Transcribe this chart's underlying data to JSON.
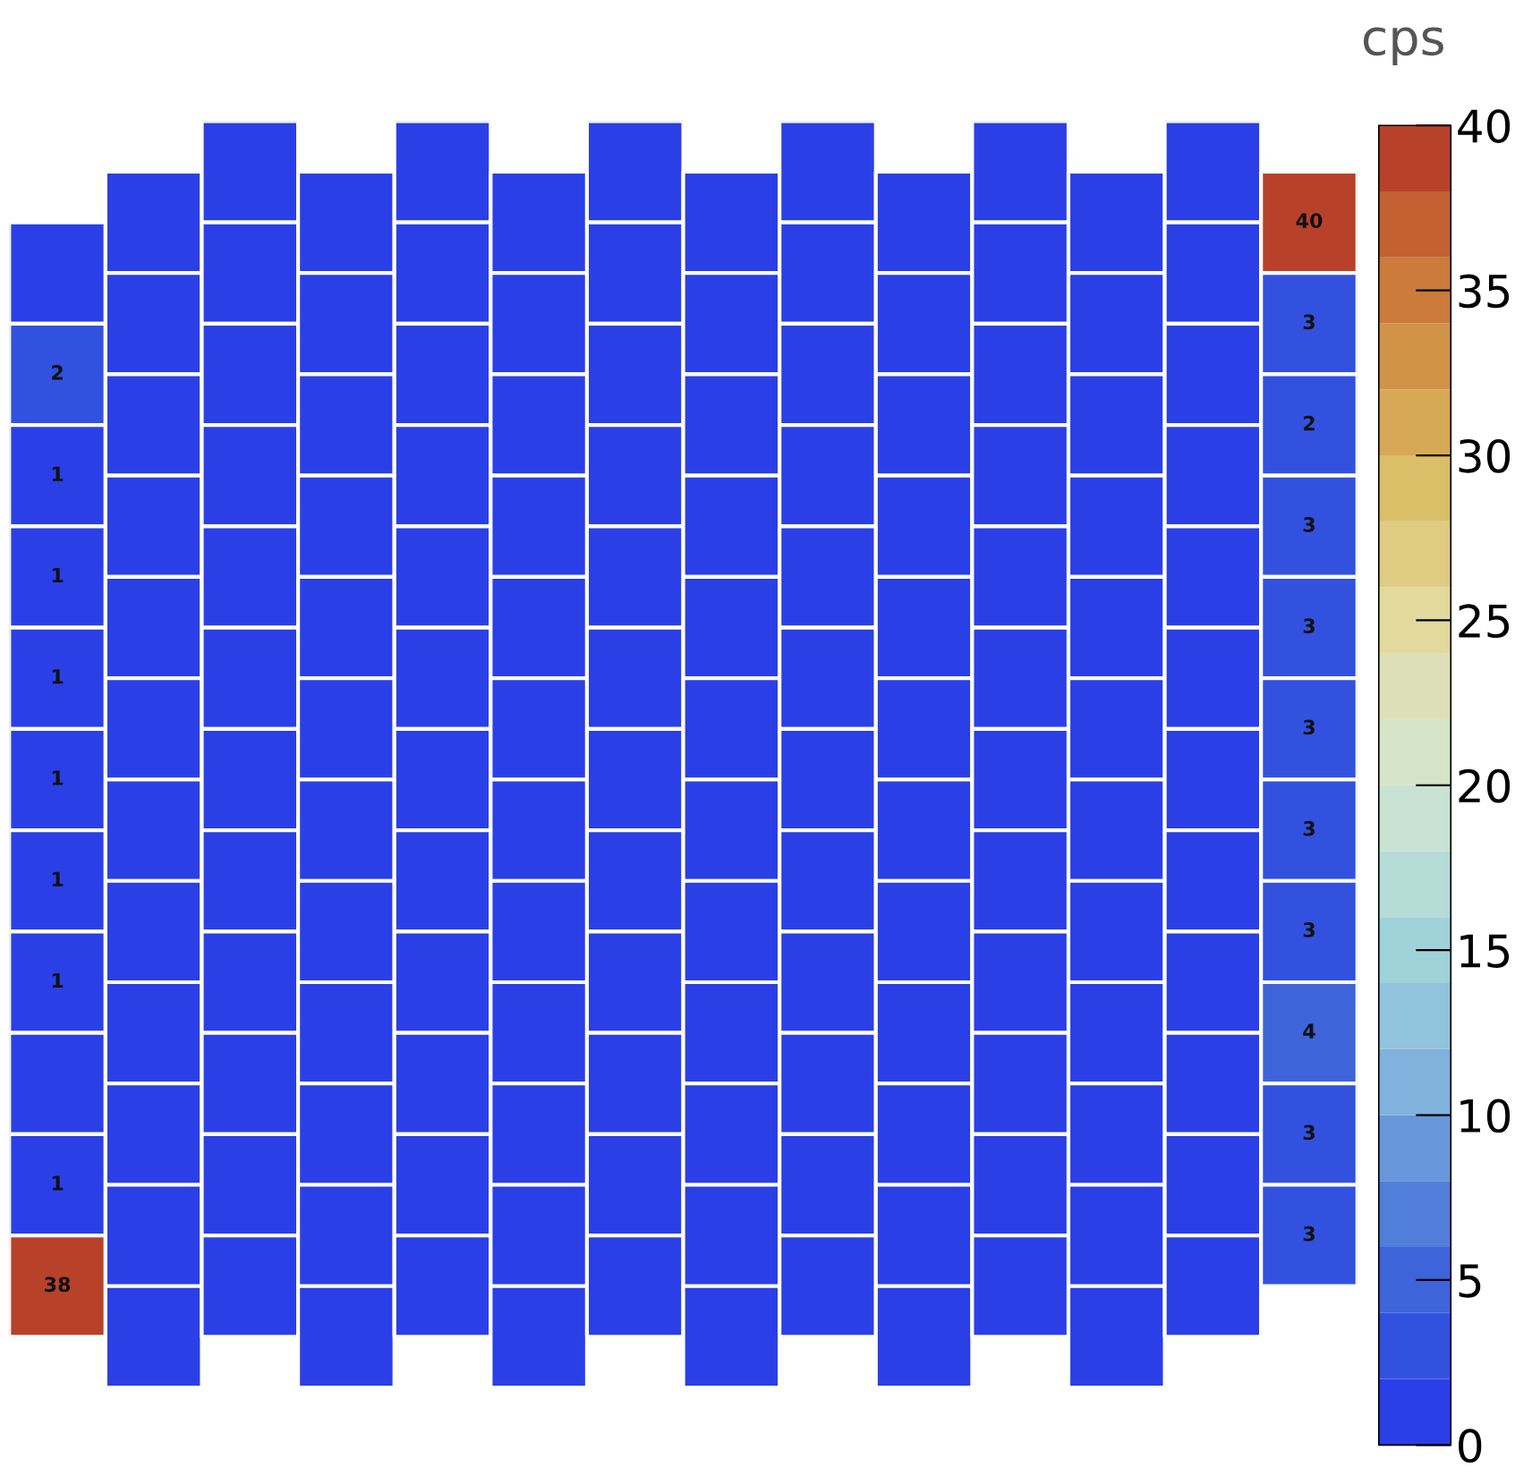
{
  "chart_data": {
    "type": "heatmap",
    "clabel": "cps",
    "categories": [
      null,
      null,
      null,
      null,
      null,
      null,
      null,
      null,
      null,
      null,
      null,
      null,
      null,
      null
    ],
    "y_categories": [
      null,
      null,
      null,
      null,
      null,
      null,
      null,
      null,
      null,
      null,
      null,
      null
    ],
    "cells": [
      [
        null,
        0,
        0,
        0,
        0,
        0,
        0,
        0,
        0,
        0,
        0,
        0,
        0,
        40
      ],
      [
        0,
        0,
        0,
        0,
        0,
        0,
        0,
        0,
        0,
        0,
        0,
        0,
        0,
        3
      ],
      [
        2,
        0,
        0,
        0,
        0,
        0,
        0,
        0,
        0,
        0,
        0,
        0,
        0,
        2
      ],
      [
        1,
        0,
        0,
        0,
        0,
        0,
        0,
        0,
        0,
        0,
        0,
        0,
        0,
        3
      ],
      [
        1,
        0,
        0,
        0,
        0,
        0,
        0,
        0,
        0,
        0,
        0,
        0,
        0,
        3
      ],
      [
        1,
        0,
        0,
        0,
        0,
        0,
        0,
        0,
        0,
        0,
        0,
        0,
        0,
        3
      ],
      [
        1,
        0,
        0,
        0,
        0,
        0,
        0,
        0,
        0,
        0,
        0,
        0,
        0,
        3
      ],
      [
        1,
        0,
        0,
        0,
        0,
        0,
        0,
        0,
        0,
        0,
        0,
        0,
        0,
        3
      ],
      [
        1,
        0,
        0,
        0,
        0,
        0,
        0,
        0,
        0,
        0,
        0,
        0,
        0,
        4
      ],
      [
        0,
        0,
        0,
        0,
        0,
        0,
        0,
        0,
        0,
        0,
        0,
        0,
        0,
        3
      ],
      [
        1,
        0,
        0,
        0,
        0,
        0,
        0,
        0,
        0,
        0,
        0,
        0,
        0,
        3
      ],
      [
        38,
        0,
        0,
        0,
        0,
        0,
        0,
        0,
        0,
        0,
        0,
        0,
        0,
        null
      ]
    ],
    "cell_labels": [
      [
        null,
        null,
        null,
        null,
        null,
        null,
        null,
        null,
        null,
        null,
        null,
        null,
        null,
        "40"
      ],
      [
        null,
        null,
        null,
        null,
        null,
        null,
        null,
        null,
        null,
        null,
        null,
        null,
        null,
        "3"
      ],
      [
        "2",
        null,
        null,
        null,
        null,
        null,
        null,
        null,
        null,
        null,
        null,
        null,
        null,
        "2"
      ],
      [
        "1",
        null,
        null,
        null,
        null,
        null,
        null,
        null,
        null,
        null,
        null,
        null,
        null,
        "3"
      ],
      [
        "1",
        null,
        null,
        null,
        null,
        null,
        null,
        null,
        null,
        null,
        null,
        null,
        null,
        "3"
      ],
      [
        "1",
        null,
        null,
        null,
        null,
        null,
        null,
        null,
        null,
        null,
        null,
        null,
        null,
        "3"
      ],
      [
        "1",
        null,
        null,
        null,
        null,
        null,
        null,
        null,
        null,
        null,
        null,
        null,
        null,
        "3"
      ],
      [
        "1",
        null,
        null,
        null,
        null,
        null,
        null,
        null,
        null,
        null,
        null,
        null,
        null,
        "3"
      ],
      [
        "1",
        null,
        null,
        null,
        null,
        null,
        null,
        null,
        null,
        null,
        null,
        null,
        null,
        "4"
      ],
      [
        null,
        null,
        null,
        null,
        null,
        null,
        null,
        null,
        null,
        null,
        null,
        null,
        null,
        "3"
      ],
      [
        "1",
        null,
        null,
        null,
        null,
        null,
        null,
        null,
        null,
        null,
        null,
        null,
        null,
        "3"
      ],
      [
        "38",
        null,
        null,
        null,
        null,
        null,
        null,
        null,
        null,
        null,
        null,
        null,
        null,
        null
      ]
    ],
    "clim": [
      0,
      40
    ],
    "cticks": [
      0,
      5,
      10,
      15,
      20,
      25,
      30,
      35,
      40
    ]
  }
}
